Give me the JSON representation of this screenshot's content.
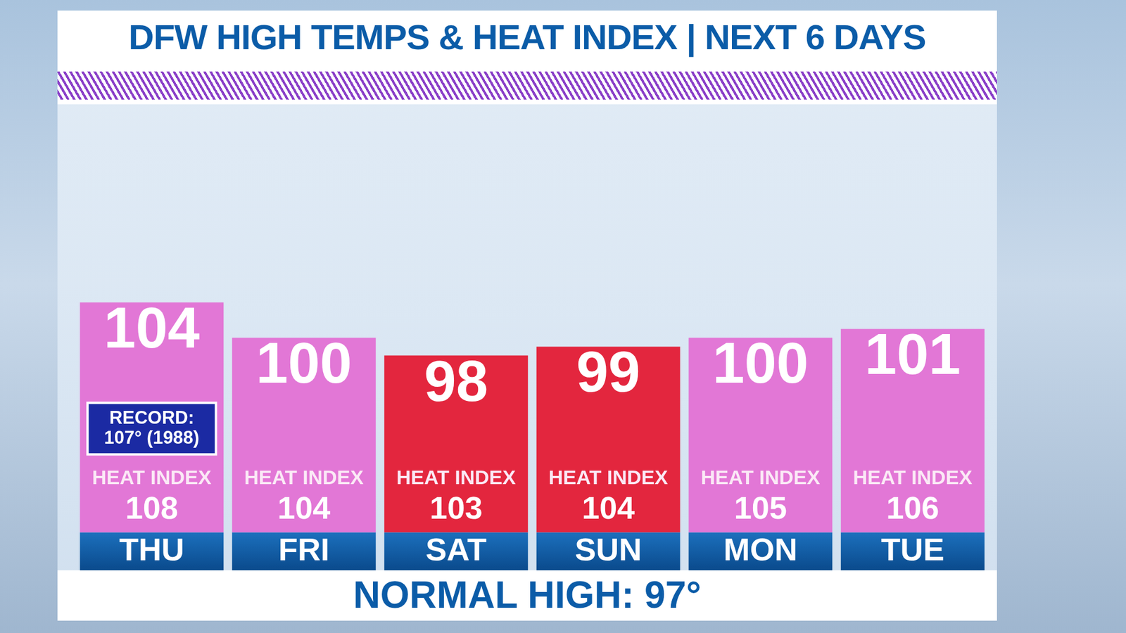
{
  "chart_data": {
    "type": "bar",
    "title": "DFW HIGH TEMPS & HEAT INDEX | NEXT 6 DAYS",
    "footer": "NORMAL HIGH: 97°",
    "categories": [
      "THU",
      "FRI",
      "SAT",
      "SUN",
      "MON",
      "TUE"
    ],
    "values": [
      104,
      100,
      98,
      99,
      100,
      101
    ],
    "colors": [
      "#e277d6",
      "#e277d6",
      "#e3263e",
      "#e3263e",
      "#e277d6",
      "#e277d6"
    ],
    "heat_index_label": "HEAT INDEX",
    "heat_index": [
      108,
      104,
      103,
      104,
      105,
      106
    ],
    "annotations": [
      {
        "category": "THU",
        "text": [
          "RECORD:",
          "107° (1988)"
        ]
      }
    ],
    "ylim": [
      78,
      126
    ],
    "yticks": [
      78,
      126
    ],
    "grid": false,
    "tick_labels": "x",
    "data_labels": true
  }
}
